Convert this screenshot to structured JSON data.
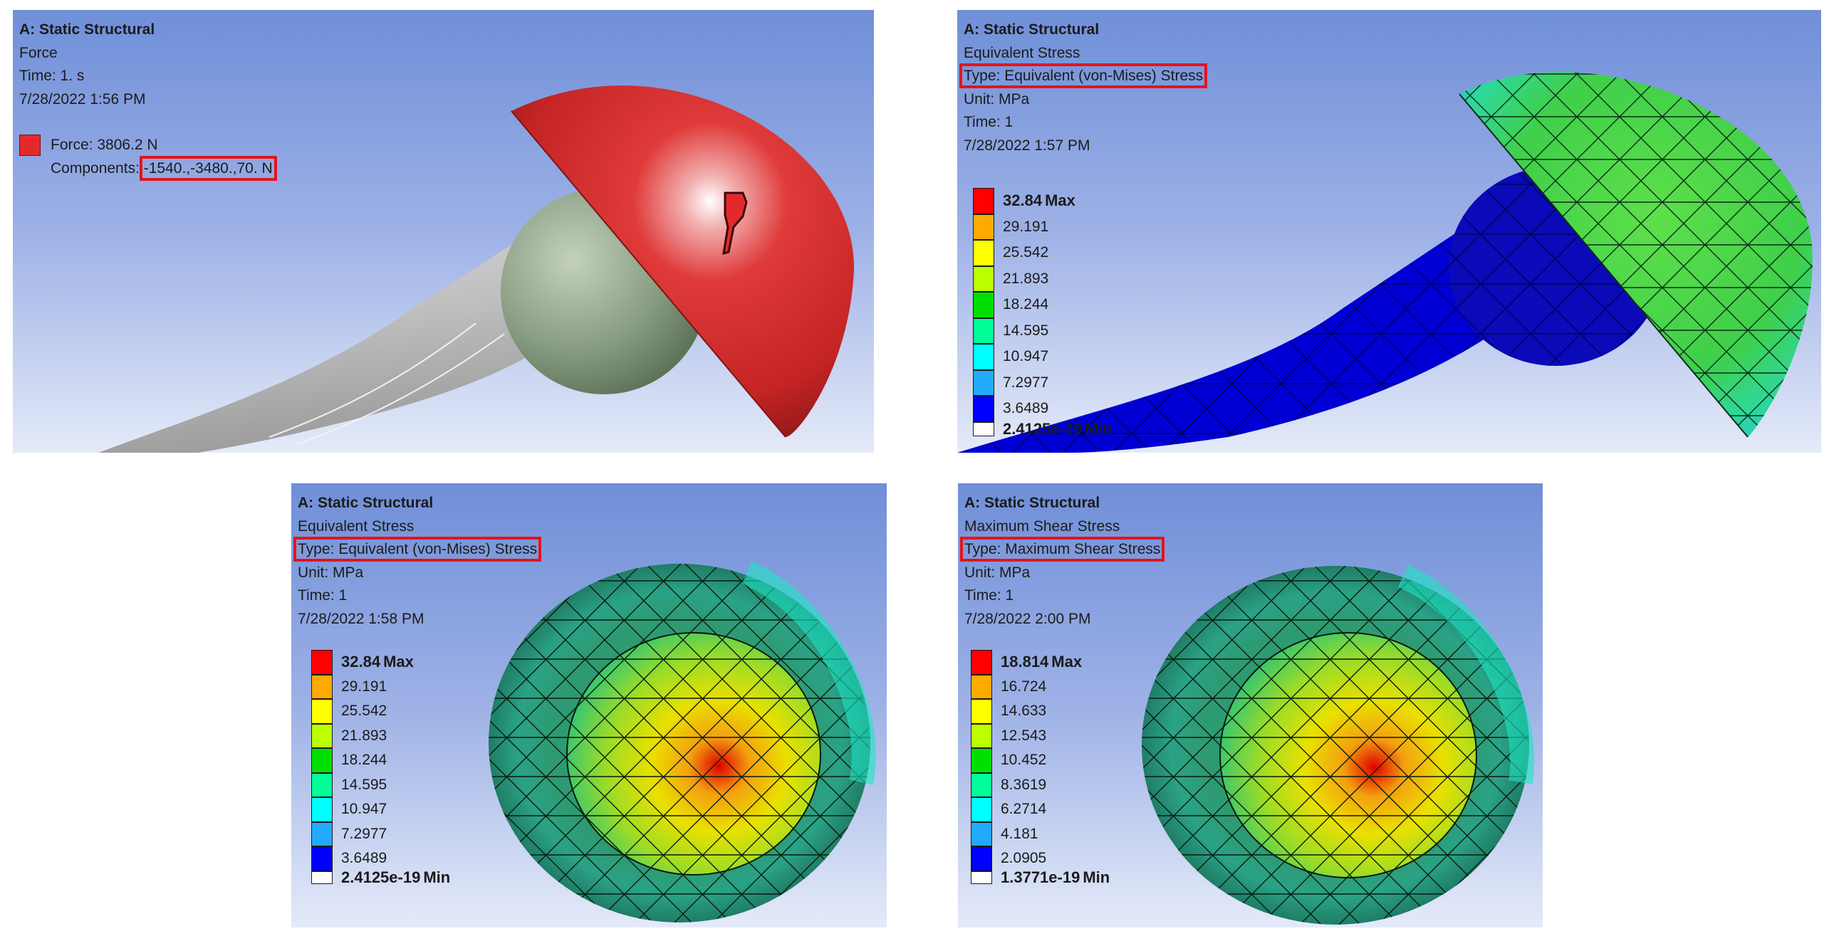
{
  "panels": [
    {
      "header": {
        "title": "A: Static Structural",
        "result": "Force",
        "time": "Time: 1. s",
        "timestamp": "7/28/2022 1:56 PM"
      },
      "force": {
        "magnitude_label": "Force: 3806.2 N",
        "components_label": "Components:",
        "components_value": "-1540.,-3480.,70. N",
        "color": "#e5292b"
      },
      "view": "force-vector-on-hemispherical-cup"
    },
    {
      "header": {
        "title": "A: Static Structural",
        "result": "Equivalent Stress",
        "type": "Type: Equivalent (von-Mises) Stress",
        "unit": "Unit: MPa",
        "time": "Time: 1",
        "timestamp": "7/28/2022 1:57 PM"
      },
      "legend": {
        "max": "32.84",
        "max_tag": "Max",
        "min": "2.4125e-19",
        "min_tag": "Min",
        "ticks": [
          "29.191",
          "25.542",
          "21.893",
          "18.244",
          "14.595",
          "10.947",
          "7.2977",
          "3.6489"
        ]
      },
      "view": "side-view-stress-contour"
    },
    {
      "header": {
        "title": "A: Static Structural",
        "result": "Equivalent Stress",
        "type": "Type: Equivalent (von-Mises) Stress",
        "unit": "Unit: MPa",
        "time": "Time: 1",
        "timestamp": "7/28/2022 1:58 PM"
      },
      "legend": {
        "max": "32.84",
        "max_tag": "Max",
        "min": "2.4125e-19",
        "min_tag": "Min",
        "ticks": [
          "29.191",
          "25.542",
          "21.893",
          "18.244",
          "14.595",
          "10.947",
          "7.2977",
          "3.6489"
        ]
      },
      "view": "inside-view-stress-contour"
    },
    {
      "header": {
        "title": "A: Static Structural",
        "result": "Maximum Shear Stress",
        "type": "Type: Maximum Shear Stress",
        "unit": "Unit: MPa",
        "time": "Time: 1",
        "timestamp": "7/28/2022 2:00 PM"
      },
      "legend": {
        "max": "18.814",
        "max_tag": "Max",
        "min": "1.3771e-19",
        "min_tag": "Min",
        "ticks": [
          "16.724",
          "14.633",
          "12.543",
          "10.452",
          "8.3619",
          "6.2714",
          "4.181",
          "2.0905"
        ]
      },
      "view": "inside-view-shear-contour"
    }
  ],
  "colors": {
    "legend_scale": [
      "#ff0000",
      "#ffaa00",
      "#ffff00",
      "#bbff00",
      "#00e000",
      "#00ff99",
      "#00ffff",
      "#22aaff",
      "#0000ff"
    ],
    "highlight_box": "#e5131b"
  }
}
